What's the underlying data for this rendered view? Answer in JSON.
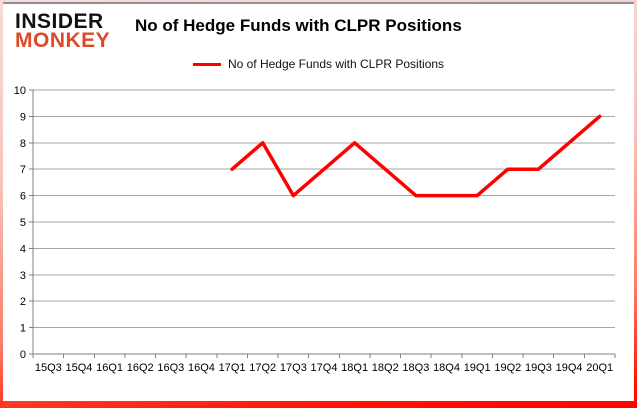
{
  "brand": {
    "line1": "INSIDER",
    "line2": "MONKEY",
    "color": "#dd4a2a"
  },
  "header": {
    "title": "No of Hedge Funds with CLPR Positions"
  },
  "legend": {
    "label": "No of Hedge Funds with CLPR Positions",
    "line_color": "#ff0000"
  },
  "chart_data": {
    "type": "line",
    "title": "No of Hedge Funds with CLPR Positions",
    "categories": [
      "15Q3",
      "15Q4",
      "16Q1",
      "16Q2",
      "16Q3",
      "16Q4",
      "17Q1",
      "17Q2",
      "17Q3",
      "17Q4",
      "18Q1",
      "18Q2",
      "18Q3",
      "18Q4",
      "19Q1",
      "19Q2",
      "19Q3",
      "19Q4",
      "20Q1"
    ],
    "series": [
      {
        "name": "No of Hedge Funds with CLPR Positions",
        "color": "#ff0000",
        "values": [
          null,
          null,
          null,
          null,
          null,
          null,
          7,
          8,
          6,
          7,
          8,
          7,
          6,
          6,
          6,
          7,
          7,
          8,
          9
        ]
      }
    ],
    "xlabel": "",
    "ylabel": "",
    "ylim": [
      0,
      10
    ],
    "yticks": [
      0,
      1,
      2,
      3,
      4,
      5,
      6,
      7,
      8,
      9,
      10
    ],
    "grid": true,
    "grid_color": "#a6a6a6",
    "axis_color": "#808080",
    "legend_position": "top"
  }
}
